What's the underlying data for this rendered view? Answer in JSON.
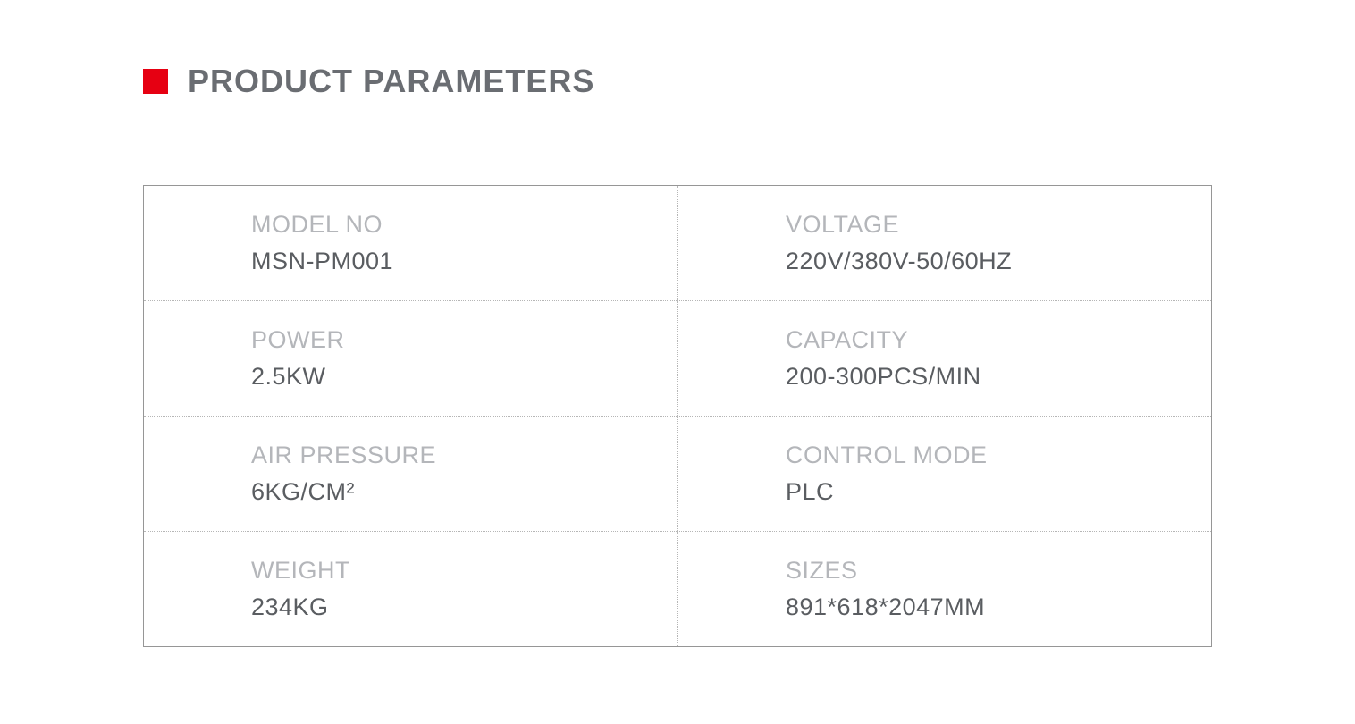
{
  "heading": {
    "title": "PRODUCT PARAMETERS",
    "accent_color": "#e60012",
    "title_color": "#6a6d72",
    "title_fontsize": 36
  },
  "params_table": {
    "border_color": "#969696",
    "divider_color": "#b6b6b6",
    "label_color": "#b4b6ba",
    "value_color": "#5a5d61",
    "label_fontsize": 27,
    "value_fontsize": 27,
    "rows": [
      {
        "left": {
          "label": "MODEL NO",
          "value": "MSN-PM001"
        },
        "right": {
          "label": "VOLTAGE",
          "value": "220V/380V-50/60HZ"
        }
      },
      {
        "left": {
          "label": "POWER",
          "value": "2.5KW"
        },
        "right": {
          "label": "CAPACITY",
          "value": "200-300PCS/MIN"
        }
      },
      {
        "left": {
          "label": "AIR PRESSURE",
          "value": "6KG/CM²"
        },
        "right": {
          "label": "CONTROL MODE",
          "value": "PLC"
        }
      },
      {
        "left": {
          "label": "WEIGHT",
          "value": "234KG"
        },
        "right": {
          "label": "SIZES",
          "value": "891*618*2047MM"
        }
      }
    ]
  }
}
